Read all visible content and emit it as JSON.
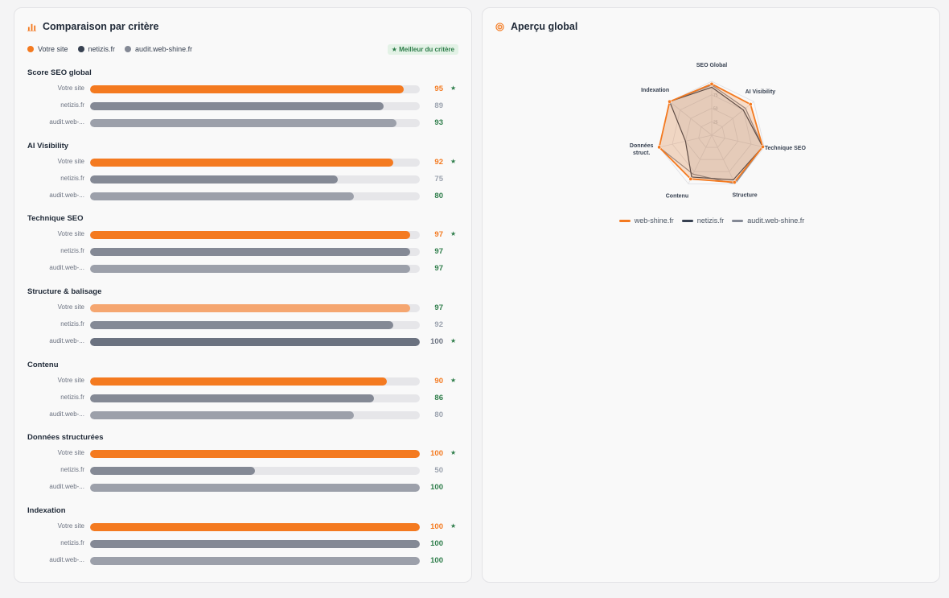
{
  "colors": {
    "orange": "#f47a20",
    "orange_light": "#f5a670",
    "dark": "#374151",
    "slate": "#848995",
    "gray": "#9ca0aa",
    "slate_dark": "#6b7280",
    "green": "#2e7d4a",
    "muted": "#9ca3af"
  },
  "comparison": {
    "title": "Comparaison par critère",
    "legend": [
      {
        "label": "Votre site",
        "color": "#f47a20"
      },
      {
        "label": "netizis.fr",
        "color": "#374151"
      },
      {
        "label": "audit.web-shine.fr",
        "color": "#848995"
      }
    ],
    "best_badge": "★ Meilleur du critère",
    "criteria": [
      {
        "title": "Score SEO global",
        "rows": [
          {
            "label": "Votre site",
            "value": 95,
            "value_text": "95",
            "bar_color": "#f47a20",
            "value_color": "#f47a20",
            "star": "★"
          },
          {
            "label": "netizis.fr",
            "value": 89,
            "value_text": "89",
            "bar_color": "#848995",
            "value_color": "#9ca3af",
            "star": ""
          },
          {
            "label": "audit.web-...",
            "value": 93,
            "value_text": "93",
            "bar_color": "#9ca0aa",
            "value_color": "#2e7d4a",
            "star": ""
          }
        ]
      },
      {
        "title": "AI Visibility",
        "rows": [
          {
            "label": "Votre site",
            "value": 92,
            "value_text": "92",
            "bar_color": "#f47a20",
            "value_color": "#f47a20",
            "star": "★"
          },
          {
            "label": "netizis.fr",
            "value": 75,
            "value_text": "75",
            "bar_color": "#848995",
            "value_color": "#9ca3af",
            "star": ""
          },
          {
            "label": "audit.web-...",
            "value": 80,
            "value_text": "80",
            "bar_color": "#9ca0aa",
            "value_color": "#2e7d4a",
            "star": ""
          }
        ]
      },
      {
        "title": "Technique SEO",
        "rows": [
          {
            "label": "Votre site",
            "value": 97,
            "value_text": "97",
            "bar_color": "#f47a20",
            "value_color": "#f47a20",
            "star": "★"
          },
          {
            "label": "netizis.fr",
            "value": 97,
            "value_text": "97",
            "bar_color": "#848995",
            "value_color": "#2e7d4a",
            "star": ""
          },
          {
            "label": "audit.web-...",
            "value": 97,
            "value_text": "97",
            "bar_color": "#9ca0aa",
            "value_color": "#2e7d4a",
            "star": ""
          }
        ]
      },
      {
        "title": "Structure & balisage",
        "rows": [
          {
            "label": "Votre site",
            "value": 97,
            "value_text": "97",
            "bar_color": "#f5a670",
            "value_color": "#2e7d4a",
            "star": ""
          },
          {
            "label": "netizis.fr",
            "value": 92,
            "value_text": "92",
            "bar_color": "#848995",
            "value_color": "#9ca3af",
            "star": ""
          },
          {
            "label": "audit.web-...",
            "value": 100,
            "value_text": "100",
            "bar_color": "#6b7280",
            "value_color": "#6b7280",
            "star": "★"
          }
        ]
      },
      {
        "title": "Contenu",
        "rows": [
          {
            "label": "Votre site",
            "value": 90,
            "value_text": "90",
            "bar_color": "#f47a20",
            "value_color": "#f47a20",
            "star": "★"
          },
          {
            "label": "netizis.fr",
            "value": 86,
            "value_text": "86",
            "bar_color": "#848995",
            "value_color": "#2e7d4a",
            "star": ""
          },
          {
            "label": "audit.web-...",
            "value": 80,
            "value_text": "80",
            "bar_color": "#9ca0aa",
            "value_color": "#9ca3af",
            "star": ""
          }
        ]
      },
      {
        "title": "Données structurées",
        "rows": [
          {
            "label": "Votre site",
            "value": 100,
            "value_text": "100",
            "bar_color": "#f47a20",
            "value_color": "#f47a20",
            "star": "★"
          },
          {
            "label": "netizis.fr",
            "value": 50,
            "value_text": "50",
            "bar_color": "#848995",
            "value_color": "#9ca3af",
            "star": ""
          },
          {
            "label": "audit.web-...",
            "value": 100,
            "value_text": "100",
            "bar_color": "#9ca0aa",
            "value_color": "#2e7d4a",
            "star": ""
          }
        ]
      },
      {
        "title": "Indexation",
        "rows": [
          {
            "label": "Votre site",
            "value": 100,
            "value_text": "100",
            "bar_color": "#f47a20",
            "value_color": "#f47a20",
            "star": "★"
          },
          {
            "label": "netizis.fr",
            "value": 100,
            "value_text": "100",
            "bar_color": "#848995",
            "value_color": "#2e7d4a",
            "star": ""
          },
          {
            "label": "audit.web-...",
            "value": 100,
            "value_text": "100",
            "bar_color": "#9ca0aa",
            "value_color": "#2e7d4a",
            "star": ""
          }
        ]
      }
    ]
  },
  "overview": {
    "title": "Aperçu global",
    "radar": {
      "type": "radar",
      "axes": [
        "SEO Global",
        "AI Visibility",
        "Technique SEO",
        "Structure",
        "Contenu",
        "Données struct.",
        "Indexation"
      ],
      "axis_lines": [
        [
          "SEO Global"
        ],
        [
          "AI Visibility"
        ],
        [
          "Technique SEO"
        ],
        [
          "Structure"
        ],
        [
          "Contenu"
        ],
        [
          "Données",
          "struct."
        ],
        [
          "Indexation"
        ]
      ],
      "rlim": [
        0,
        100
      ],
      "ring_values": [
        25,
        50,
        75,
        100
      ],
      "tick_labels": [
        "25",
        "50",
        "75"
      ],
      "series": [
        {
          "name": "web-shine.fr",
          "color": "#f47a20",
          "values": [
            95,
            92,
            97,
            97,
            90,
            100,
            100
          ]
        },
        {
          "name": "netizis.fr",
          "color": "#374151",
          "values": [
            89,
            75,
            97,
            92,
            86,
            50,
            100
          ]
        },
        {
          "name": "audit.web-shine.fr",
          "color": "#848995",
          "values": [
            93,
            80,
            97,
            100,
            80,
            100,
            100
          ]
        }
      ],
      "legend_position": "bottom"
    }
  }
}
